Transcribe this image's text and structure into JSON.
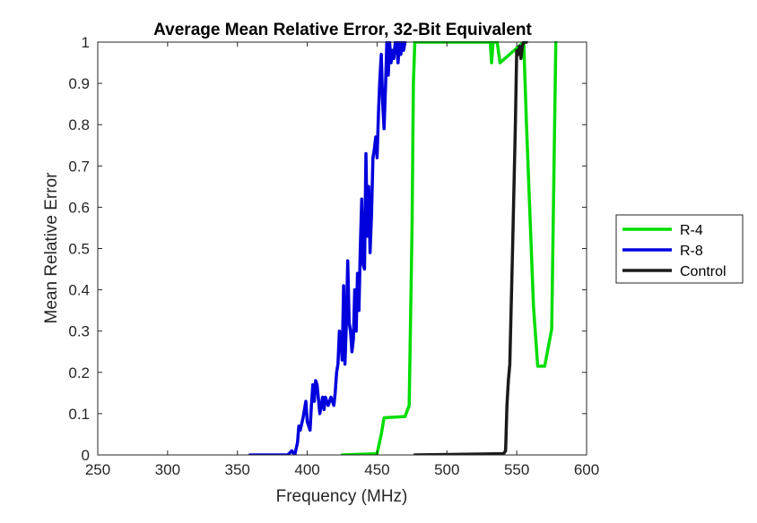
{
  "chart_data": {
    "type": "line",
    "title": "Average Mean Relative Error, 32-Bit Equivalent",
    "xlabel": "Frequency (MHz)",
    "ylabel": "Mean Relative Error",
    "xlim": [
      250,
      600
    ],
    "ylim": [
      0,
      1
    ],
    "xticks": [
      250,
      300,
      350,
      400,
      450,
      500,
      550,
      600
    ],
    "xtick_labels": [
      "250",
      "300",
      "350",
      "400",
      "450",
      "500",
      "550",
      "600"
    ],
    "yticks": [
      0,
      0.1,
      0.2,
      0.3,
      0.4,
      0.5,
      0.6,
      0.7,
      0.8,
      0.9,
      1
    ],
    "ytick_labels": [
      "0",
      "0.1",
      "0.2",
      "0.3",
      "0.4",
      "0.5",
      "0.6",
      "0.7",
      "0.8",
      "0.9",
      "1"
    ],
    "grid": false,
    "legend_position": "outside-right",
    "series": [
      {
        "name": "R-4",
        "color": "#00dd00",
        "x": [
          425,
          450,
          453,
          455,
          470,
          473,
          475,
          476,
          477,
          479,
          531,
          532,
          533,
          536,
          538,
          555,
          557,
          562,
          565,
          570,
          575,
          578
        ],
        "y": [
          0,
          0.003,
          0.05,
          0.09,
          0.093,
          0.12,
          0.55,
          0.9,
          1.0,
          1.0,
          1.0,
          0.95,
          1.0,
          1.0,
          0.95,
          1.0,
          0.8,
          0.36,
          0.215,
          0.215,
          0.305,
          1.0
        ]
      },
      {
        "name": "R-8",
        "color": "#0000dd",
        "x": [
          359,
          386,
          389,
          391,
          393,
          394,
          395,
          397,
          399,
          400,
          402,
          403,
          404,
          405,
          406,
          407,
          409,
          410,
          411,
          412,
          413,
          414,
          415,
          417,
          419,
          420,
          421,
          422,
          423,
          424,
          425,
          426,
          427,
          428,
          429,
          430,
          431,
          432,
          433,
          434,
          435,
          436,
          437,
          438,
          439,
          440,
          441,
          442,
          443,
          444,
          445,
          446,
          447,
          448,
          449,
          450,
          451,
          452,
          453,
          454,
          455,
          456,
          457,
          458,
          459,
          460,
          461,
          462,
          463,
          464,
          465,
          466,
          467,
          468,
          469,
          470
        ],
        "y": [
          0,
          0,
          0.01,
          0,
          0.03,
          0.07,
          0.06,
          0.09,
          0.13,
          0.08,
          0.06,
          0.12,
          0.17,
          0.13,
          0.18,
          0.17,
          0.1,
          0.12,
          0.14,
          0.11,
          0.14,
          0.13,
          0.12,
          0.14,
          0.12,
          0.15,
          0.2,
          0.22,
          0.3,
          0.28,
          0.23,
          0.41,
          0.22,
          0.32,
          0.47,
          0.32,
          0.3,
          0.25,
          0.28,
          0.4,
          0.3,
          0.44,
          0.35,
          0.5,
          0.62,
          0.46,
          0.45,
          0.73,
          0.53,
          0.65,
          0.49,
          0.58,
          0.72,
          0.74,
          0.77,
          0.72,
          0.83,
          0.91,
          0.97,
          0.85,
          0.79,
          0.89,
          1.0,
          0.92,
          1.0,
          0.95,
          0.98,
          0.96,
          1.0,
          1.0,
          0.95,
          1.0,
          0.97,
          1.0,
          0.98,
          1.0
        ]
      },
      {
        "name": "Control",
        "color": "#1a1a1a",
        "x": [
          477,
          540,
          541,
          542,
          543,
          544,
          545,
          547,
          549,
          550,
          551,
          552,
          553,
          554,
          555,
          557
        ],
        "y": [
          0,
          0.003,
          0.005,
          0.01,
          0.12,
          0.18,
          0.22,
          0.5,
          0.8,
          0.98,
          0.97,
          0.99,
          0.96,
          0.99,
          1.0,
          1.0
        ]
      }
    ]
  }
}
